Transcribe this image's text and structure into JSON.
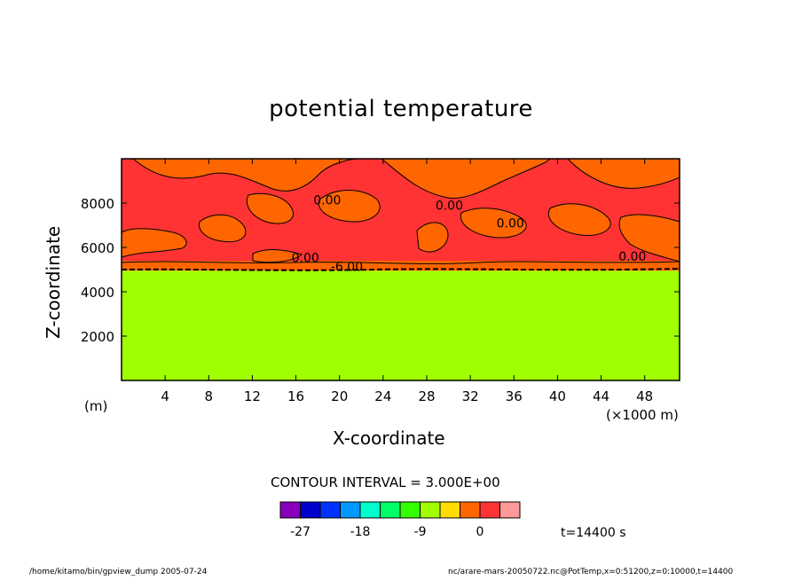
{
  "chart_data": {
    "type": "heatmap",
    "title": "potential temperature",
    "xlabel": "X-coordinate",
    "ylabel": "Z-coordinate",
    "x_unit": "(×1000 m)",
    "y_unit": "(m)",
    "xlim": [
      0,
      51.2
    ],
    "ylim": [
      0,
      10000
    ],
    "x_ticks": [
      4,
      8,
      12,
      16,
      20,
      24,
      28,
      32,
      36,
      40,
      44,
      48
    ],
    "y_ticks": [
      2000,
      4000,
      6000,
      8000
    ],
    "layers": [
      {
        "z_from": 0,
        "z_to": 4950,
        "color": "#a0ff00",
        "level_range": "-6 to -3"
      },
      {
        "z_from": 4950,
        "z_to": 5400,
        "color": "#ff6600",
        "level_range": "-3 to 0"
      },
      {
        "z_from": 5400,
        "z_to": 10000,
        "color": "#ff3333",
        "level_range": "0 to 3",
        "patches_color": "#ff6600"
      }
    ],
    "contour_labels": [
      {
        "text": "0.00",
        "x": 17.6,
        "z": 7950
      },
      {
        "text": "0.00",
        "x": 28.8,
        "z": 7700
      },
      {
        "text": "0.00",
        "x": 34.4,
        "z": 6900
      },
      {
        "text": "0.00",
        "x": 15.6,
        "z": 5350
      },
      {
        "text": "-6.00",
        "x": 19.2,
        "z": 4950
      },
      {
        "text": "0.00",
        "x": 45.6,
        "z": 5400
      }
    ],
    "contour_interval": "CONTOUR INTERVAL = 3.000E+00",
    "colorbar": {
      "colors": [
        "#8800bb",
        "#0000cc",
        "#0033ff",
        "#0099ff",
        "#00ffcc",
        "#00ff66",
        "#33ff00",
        "#a0ff00",
        "#ffdd00",
        "#ff6600",
        "#ff3333",
        "#ff9999"
      ],
      "tick_labels": [
        "-27",
        "-18",
        "-9",
        "0"
      ],
      "tick_bins": [
        1,
        4,
        7,
        10
      ]
    },
    "time_label": "t=14400 s"
  },
  "footer": {
    "left": "/home/kitamo/bin/gpview_dump  2005-07-24",
    "right": "nc/arare-mars-20050722.nc@PotTemp,x=0:51200,z=0:10000,t=14400"
  }
}
